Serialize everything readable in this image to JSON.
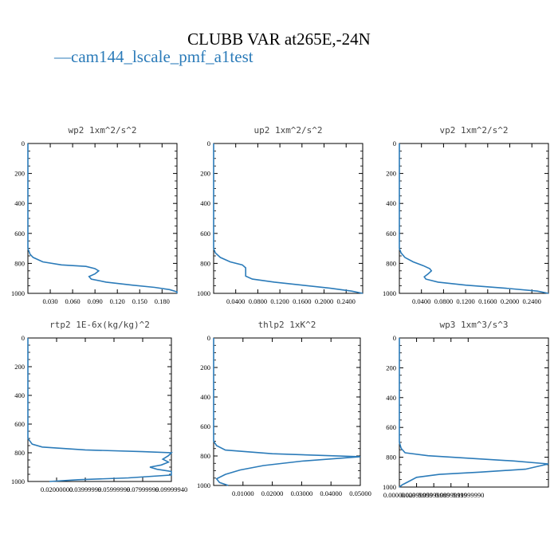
{
  "figure": {
    "title": "CLUBB VAR at265E,-24N",
    "legend": {
      "marker": "—",
      "label": "cam144_lscale_pmf_a1test",
      "color": "#2b7bb9"
    }
  },
  "chart_data": [
    {
      "type": "line",
      "title": "wp2  1xm^2/s^2",
      "xlim": [
        0,
        0.2
      ],
      "ylim": [
        0,
        1000
      ],
      "y_inverted": true,
      "xticks": [
        "0.030",
        "0.060",
        "0.090",
        "0.120",
        "0.150",
        "0.180"
      ],
      "xtick_values": [
        0.03,
        0.06,
        0.09,
        0.12,
        0.15,
        0.18
      ],
      "yticks": [
        "0",
        "200",
        "400",
        "600",
        "800",
        "1000"
      ],
      "series": [
        {
          "color": "#2b7bb9",
          "points": [
            [
              0,
              0
            ],
            [
              0,
              700
            ],
            [
              0.003,
              740
            ],
            [
              0.007,
              760
            ],
            [
              0.02,
              790
            ],
            [
              0.045,
              810
            ],
            [
              0.078,
              820
            ],
            [
              0.09,
              835
            ],
            [
              0.095,
              850
            ],
            [
              0.09,
              870
            ],
            [
              0.082,
              888
            ],
            [
              0.085,
              905
            ],
            [
              0.105,
              925
            ],
            [
              0.14,
              945
            ],
            [
              0.17,
              960
            ],
            [
              0.19,
              975
            ],
            [
              0.2,
              990
            ],
            [
              0.2,
              1000
            ]
          ]
        }
      ]
    },
    {
      "type": "line",
      "title": "up2  1xm^2/s^2",
      "xlim": [
        0,
        0.27
      ],
      "ylim": [
        0,
        1000
      ],
      "y_inverted": true,
      "xticks": [
        "0.0400",
        "0.0800",
        "0.1200",
        "0.1600",
        "0.2000",
        "0.2400"
      ],
      "xtick_values": [
        0.04,
        0.08,
        0.12,
        0.16,
        0.2,
        0.24
      ],
      "yticks": [
        "0",
        "200",
        "400",
        "600",
        "800",
        "1000"
      ],
      "series": [
        {
          "color": "#2b7bb9",
          "points": [
            [
              0,
              0
            ],
            [
              0,
              700
            ],
            [
              0.003,
              730
            ],
            [
              0.012,
              760
            ],
            [
              0.03,
              790
            ],
            [
              0.052,
              810
            ],
            [
              0.058,
              830
            ],
            [
              0.058,
              860
            ],
            [
              0.058,
              885
            ],
            [
              0.07,
              905
            ],
            [
              0.11,
              925
            ],
            [
              0.16,
              945
            ],
            [
              0.21,
              965
            ],
            [
              0.25,
              985
            ],
            [
              0.27,
              1000
            ]
          ]
        }
      ]
    },
    {
      "type": "line",
      "title": "vp2  1xm^2/s^2",
      "xlim": [
        0,
        0.27
      ],
      "ylim": [
        0,
        1000
      ],
      "y_inverted": true,
      "xticks": [
        "0.0400",
        "0.0800",
        "0.1200",
        "0.1600",
        "0.2000",
        "0.2400"
      ],
      "xtick_values": [
        0.04,
        0.08,
        0.12,
        0.16,
        0.2,
        0.24
      ],
      "yticks": [
        "0",
        "200",
        "400",
        "600",
        "800",
        "1000"
      ],
      "series": [
        {
          "color": "#2b7bb9",
          "points": [
            [
              0,
              0
            ],
            [
              0,
              700
            ],
            [
              0.003,
              730
            ],
            [
              0.01,
              760
            ],
            [
              0.025,
              790
            ],
            [
              0.043,
              815
            ],
            [
              0.055,
              835
            ],
            [
              0.058,
              850
            ],
            [
              0.052,
              870
            ],
            [
              0.045,
              890
            ],
            [
              0.048,
              905
            ],
            [
              0.07,
              925
            ],
            [
              0.12,
              945
            ],
            [
              0.19,
              965
            ],
            [
              0.25,
              985
            ],
            [
              0.27,
              1000
            ]
          ]
        }
      ]
    },
    {
      "type": "line",
      "title": "rtp2  1E-6x(kg/kg)^2",
      "xlim": [
        0,
        0.1
      ],
      "ylim": [
        0,
        1000
      ],
      "y_inverted": true,
      "xticks": [
        "0.02000000",
        "0.03999999",
        "0.05999999",
        "0.07999999",
        "0.09999940"
      ],
      "xtick_values": [
        0.02,
        0.04,
        0.06,
        0.08,
        0.1
      ],
      "yticks": [
        "0",
        "200",
        "400",
        "600",
        "800",
        "1000"
      ],
      "series": [
        {
          "color": "#2b7bb9",
          "points": [
            [
              0,
              0
            ],
            [
              0,
              700
            ],
            [
              0.003,
              740
            ],
            [
              0.01,
              760
            ],
            [
              0.04,
              780
            ],
            [
              0.08,
              792
            ],
            [
              0.1,
              800
            ],
            [
              0.098,
              820
            ],
            [
              0.094,
              845
            ],
            [
              0.098,
              865
            ],
            [
              0.093,
              885
            ],
            [
              0.085,
              900
            ],
            [
              0.09,
              915
            ],
            [
              0.1,
              930
            ],
            [
              0.1,
              955
            ],
            [
              0.07,
              975
            ],
            [
              0.035,
              988
            ],
            [
              0.015,
              1000
            ]
          ]
        }
      ]
    },
    {
      "type": "line",
      "title": "thlp2  1xK^2",
      "xlim": [
        0,
        0.05
      ],
      "ylim": [
        0,
        1000
      ],
      "y_inverted": true,
      "xticks": [
        "0.01000",
        "0.02000",
        "0.03000",
        "0.04000",
        "0.05000"
      ],
      "xtick_values": [
        0.01,
        0.02,
        0.03,
        0.04,
        0.05
      ],
      "yticks": [
        "0",
        "200",
        "400",
        "600",
        "800",
        "1000"
      ],
      "series": [
        {
          "color": "#2b7bb9",
          "points": [
            [
              0,
              0
            ],
            [
              0,
              700
            ],
            [
              0.001,
              730
            ],
            [
              0.004,
              760
            ],
            [
              0.02,
              785
            ],
            [
              0.05,
              805
            ],
            [
              0.03,
              835
            ],
            [
              0.017,
              865
            ],
            [
              0.009,
              895
            ],
            [
              0.004,
              925
            ],
            [
              0.001,
              955
            ],
            [
              0.002,
              980
            ],
            [
              0.005,
              1000
            ]
          ]
        }
      ]
    },
    {
      "type": "line",
      "title": "wp3  1xm^3/s^3",
      "xlim": [
        0,
        0.26
      ],
      "ylim": [
        0,
        1000
      ],
      "y_inverted": true,
      "xticks": [
        "0.00000000",
        "0.02999999",
        "0.05999999",
        "0.08999999",
        "0.11999990"
      ],
      "xtick_values": [
        0.0,
        0.03,
        0.06,
        0.09,
        0.12
      ],
      "yticks": [
        "0",
        "200",
        "400",
        "600",
        "800",
        "1000"
      ],
      "series": [
        {
          "color": "#2b7bb9",
          "points": [
            [
              0,
              0
            ],
            [
              0,
              700
            ],
            [
              0.003,
              740
            ],
            [
              0.01,
              770
            ],
            [
              0.05,
              790
            ],
            [
              0.2,
              825
            ],
            [
              0.26,
              845
            ],
            [
              0.22,
              880
            ],
            [
              0.14,
              900
            ],
            [
              0.07,
              915
            ],
            [
              0.03,
              935
            ],
            [
              0.015,
              965
            ],
            [
              0.005,
              985
            ],
            [
              0,
              1000
            ]
          ]
        }
      ]
    }
  ]
}
